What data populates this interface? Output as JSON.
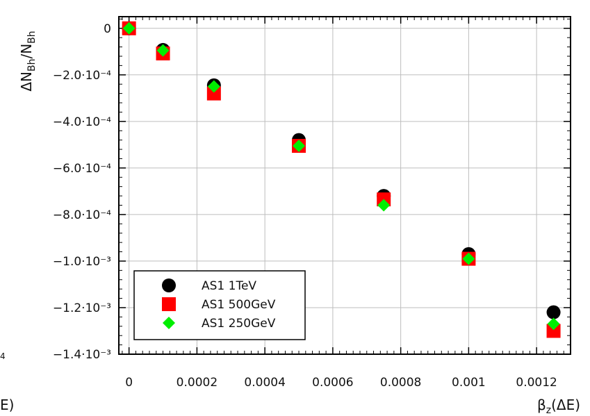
{
  "chart_data": {
    "type": "scatter",
    "xlabel": "β_z(ΔE)",
    "ylabel": "ΔN_Bh/N_Bh",
    "xlim": [
      -3e-05,
      0.0013
    ],
    "ylim": [
      -0.0014,
      5e-05
    ],
    "x_ticks": [
      {
        "value": 0,
        "label": "0"
      },
      {
        "value": 0.0002,
        "label": "0.0002"
      },
      {
        "value": 0.0004,
        "label": "0.0004"
      },
      {
        "value": 0.0006,
        "label": "0.0006"
      },
      {
        "value": 0.0008,
        "label": "0.0008"
      },
      {
        "value": 0.001,
        "label": "0.001"
      },
      {
        "value": 0.0012,
        "label": "0.0012"
      }
    ],
    "y_ticks": [
      {
        "value": 0,
        "label": "0"
      },
      {
        "value": -0.0002,
        "label": "−2.0·10⁻⁴"
      },
      {
        "value": -0.0004,
        "label": "−4.0·10⁻⁴"
      },
      {
        "value": -0.0006,
        "label": "−6.0·10⁻⁴"
      },
      {
        "value": -0.0008,
        "label": "−8.0·10⁻⁴"
      },
      {
        "value": -0.001,
        "label": "−1.0·10⁻³"
      },
      {
        "value": -0.0012,
        "label": "−1.2·10⁻³"
      },
      {
        "value": -0.0014,
        "label": "−1.4·10⁻³"
      }
    ],
    "grid": true,
    "legend_position": "bottom-left",
    "x": [
      0,
      0.0001,
      0.00025,
      0.0005,
      0.00075,
      0.001,
      0.00125
    ],
    "series": [
      {
        "name": "AS1 1TeV",
        "marker": "circle",
        "color": "#000000",
        "values": [
          0,
          -9.3e-05,
          -0.000245,
          -0.00048,
          -0.00072,
          -0.00097,
          -0.00122
        ]
      },
      {
        "name": "AS1 500GeV",
        "marker": "square",
        "color": "#ff0000",
        "values": [
          0,
          -0.000108,
          -0.00028,
          -0.000505,
          -0.000735,
          -0.00099,
          -0.0013
        ]
      },
      {
        "name": "AS1 250GeV",
        "marker": "diamond",
        "color": "#00ee00",
        "values": [
          0,
          -9.5e-05,
          -0.00025,
          -0.000505,
          -0.00076,
          -0.00099,
          -0.00127
        ]
      }
    ]
  },
  "edge_fragments": {
    "left_axis_partial": "E)",
    "left_exponent_partial": "4"
  }
}
